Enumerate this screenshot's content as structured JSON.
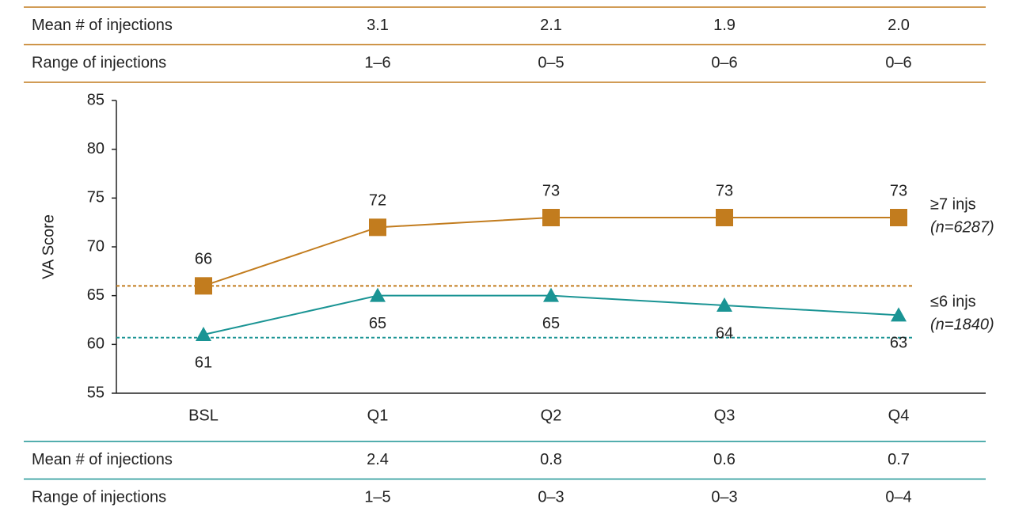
{
  "top_table": {
    "rows": [
      [
        "Mean # of injections",
        "3.1",
        "2.1",
        "1.9",
        "2.0"
      ],
      [
        "Range of injections",
        "1–6",
        "0–5",
        "0–6",
        "0–6"
      ]
    ],
    "color": "#c27c1e"
  },
  "chart_data": {
    "type": "line",
    "ylabel": "VA Score",
    "categories": [
      "BSL",
      "Q1",
      "Q2",
      "Q3",
      "Q4"
    ],
    "ylim": [
      55,
      85
    ],
    "yticks": [
      55,
      60,
      65,
      70,
      75,
      80,
      85
    ],
    "series": [
      {
        "name": "≥7 injs",
        "n_label": "(n=6287)",
        "color": "#c27c1e",
        "marker": "square",
        "label_side": "above",
        "values": [
          66,
          72,
          73,
          73,
          73
        ]
      },
      {
        "name": "≤6 injs",
        "n_label": "(n=1840)",
        "color": "#1a9494",
        "marker": "triangle",
        "label_side": "below",
        "values": [
          61,
          65,
          65,
          64,
          63
        ]
      }
    ],
    "reference_lines": [
      {
        "value": 66,
        "color": "#c27c1e"
      },
      {
        "value": 60.7,
        "color": "#1a9494"
      }
    ]
  },
  "bottom_table": {
    "rows": [
      [
        "Mean # of injections",
        "2.4",
        "0.8",
        "0.6",
        "0.7"
      ],
      [
        "Range of injections",
        "1–5",
        "0–3",
        "0–3",
        "0–4"
      ]
    ],
    "color": "#1a9494"
  }
}
